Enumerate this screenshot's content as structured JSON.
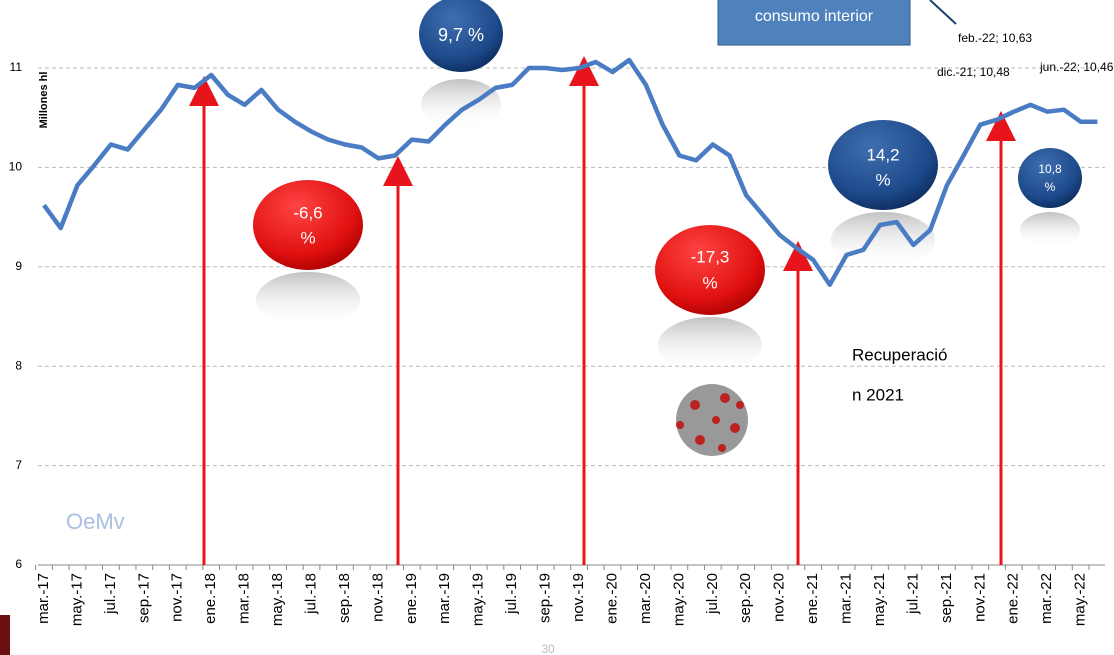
{
  "chart_data": {
    "type": "line",
    "y_label": "Millones hl",
    "categories": [
      "mar.-17",
      null,
      "may.-17",
      null,
      "jul.-17",
      null,
      "sep.-17",
      null,
      "nov.-17",
      null,
      "ene.-18",
      null,
      "mar.-18",
      null,
      "may.-18",
      null,
      "jul.-18",
      null,
      "sep.-18",
      null,
      "nov.-18",
      null,
      "ene.-19",
      null,
      "mar.-19",
      null,
      "may.-19",
      null,
      "jul.-19",
      null,
      "sep.-19",
      null,
      "nov.-19",
      null,
      "ene.-20",
      null,
      "mar.-20",
      null,
      "may.-20",
      null,
      "jul.-20",
      null,
      "sep.-20",
      null,
      "nov.-20",
      null,
      "ene.-21",
      null,
      "mar.-21",
      null,
      "may.-21",
      null,
      "jul.-21",
      null,
      "sep.-21",
      null,
      "nov.-21",
      null,
      "ene.-22",
      null,
      "mar.-22",
      null,
      "may.-22",
      null
    ],
    "series": [
      {
        "name": "consumo interior",
        "color": "#4a7cc4",
        "values": [
          9.62,
          9.39,
          9.82,
          10.02,
          10.23,
          10.18,
          10.38,
          10.58,
          10.83,
          10.8,
          10.93,
          10.73,
          10.63,
          10.78,
          10.58,
          10.46,
          10.36,
          10.28,
          10.23,
          10.2,
          10.09,
          10.12,
          10.28,
          10.26,
          10.43,
          10.58,
          10.68,
          10.8,
          10.83,
          11.0,
          11.0,
          10.98,
          11.0,
          11.06,
          10.96,
          11.08,
          10.83,
          10.43,
          10.12,
          10.07,
          10.23,
          10.12,
          9.72,
          9.52,
          9.32,
          9.19,
          9.07,
          8.82,
          9.12,
          9.17,
          9.42,
          9.45,
          9.22,
          9.37,
          9.82,
          10.12,
          10.43,
          10.48,
          10.56,
          10.63,
          10.56,
          10.58,
          10.46,
          10.46
        ]
      }
    ],
    "ylim": [
      6,
      11.68
    ],
    "yticks": [
      6,
      7,
      8,
      9,
      10,
      11
    ],
    "grid": true,
    "annotations": {
      "box": "consumo interior",
      "feb": "feb.-22; 10,63",
      "dic": "dic.-21; 10,48",
      "jun": "jun.-22; 10,46",
      "b1": "9,7 %",
      "b2a": "-6,6",
      "b2b": "%",
      "b3a": "-17,3",
      "b3b": "%",
      "b4a": "14,2",
      "b4b": "%",
      "b5a": "10,8",
      "b5b": "%",
      "rec1": "Recuperació",
      "rec2": "n 2021",
      "logo": "OeMv",
      "page": "30"
    }
  }
}
